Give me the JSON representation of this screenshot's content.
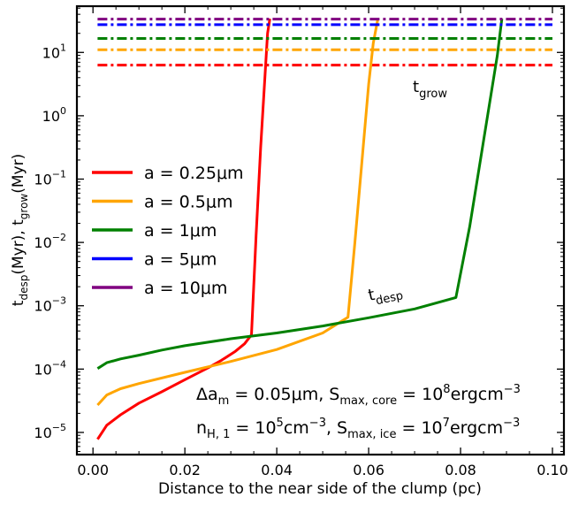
{
  "chart_data": {
    "type": "line",
    "title": "",
    "xlabel": "Distance to the near side of the clump (pc)",
    "ylabel_parts": {
      "t": "t",
      "despSub": "desp",
      "myr1": "(Myr),  ",
      "growSub": "grow",
      "myr2": "(Myr)"
    },
    "x_ticks": [
      "0.00",
      "0.02",
      "0.04",
      "0.06",
      "0.08",
      "0.10"
    ],
    "y_ticks": [
      {
        "base": "10",
        "exp": "1",
        "value": 1
      },
      {
        "base": "10",
        "exp": "0",
        "value": 0
      },
      {
        "base": "10",
        "exp": "−1",
        "value": -1
      },
      {
        "base": "10",
        "exp": "−2",
        "value": -2
      },
      {
        "base": "10",
        "exp": "−3",
        "value": -3
      },
      {
        "base": "10",
        "exp": "−4",
        "value": -4
      },
      {
        "base": "10",
        "exp": "−5",
        "value": -5
      }
    ],
    "xlim": [
      -0.0035,
      0.1025
    ],
    "ylim_log10": [
      -5.35,
      1.73
    ],
    "yscale": "log",
    "grid": false,
    "legend_placement": "center-left",
    "series": [
      {
        "name": "a = 0.25μm",
        "color": "#ff0000",
        "t_grow_myr": 6.3,
        "t_grow_x": [
          0.001,
          0.1
        ],
        "t_desp": {
          "x": [
            0.001,
            0.003,
            0.006,
            0.01,
            0.015,
            0.02,
            0.025,
            0.028,
            0.031,
            0.033,
            0.0345,
            0.0355,
            0.0365,
            0.0375,
            0.038,
            0.0385
          ],
          "y": [
            7.8e-06,
            1.3e-05,
            1.9e-05,
            2.9e-05,
            4.4e-05,
            6.8e-05,
            0.000104,
            0.000138,
            0.000191,
            0.000251,
            0.000347,
            0.0126,
            0.316,
            5.0,
            20.0,
            34.0
          ]
        }
      },
      {
        "name": "a = 0.5μm",
        "color": "#ffa500",
        "t_grow_myr": 11.0,
        "t_grow_x": [
          0.001,
          0.1
        ],
        "t_desp": {
          "x": [
            0.001,
            0.003,
            0.006,
            0.01,
            0.02,
            0.03,
            0.04,
            0.05,
            0.0555,
            0.057,
            0.0585,
            0.06,
            0.061,
            0.062
          ],
          "y": [
            2.7e-05,
            3.9e-05,
            4.9e-05,
            5.9e-05,
            8.9e-05,
            0.000132,
            0.000204,
            0.000372,
            0.000661,
            0.01,
            0.178,
            3.16,
            14.0,
            34.0
          ]
        }
      },
      {
        "name": "a = 1μm",
        "color": "#008000",
        "t_grow_myr": 16.6,
        "t_grow_x": [
          0.001,
          0.1
        ],
        "t_desp": {
          "x": [
            0.001,
            0.003,
            0.006,
            0.01,
            0.015,
            0.02,
            0.03,
            0.04,
            0.05,
            0.06,
            0.07,
            0.079,
            0.082,
            0.085,
            0.088,
            0.089
          ],
          "y": [
            0.000102,
            0.000126,
            0.000145,
            0.000166,
            0.0002,
            0.000234,
            0.000302,
            0.000372,
            0.000479,
            0.000646,
            0.000891,
            0.00135,
            0.0178,
            0.398,
            8.91,
            34.0
          ]
        }
      },
      {
        "name": "a = 5μm",
        "color": "#0000ff",
        "t_grow_myr": 27.5,
        "t_grow_x": [
          0.001,
          0.1
        ]
      },
      {
        "name": "a = 10μm",
        "color": "#800080",
        "t_grow_myr": 33.5,
        "t_grow_x": [
          0.001,
          0.1
        ]
      }
    ],
    "annotations": {
      "tgrow": {
        "main": "t",
        "sub": "grow"
      },
      "tdesp": {
        "main": "t",
        "sub": "desp"
      },
      "note1": {
        "p1": "Δa",
        "p1sub": "m",
        "p2": " = 0.05μm, S",
        "p2sub": "max, core",
        "p3": " = 10",
        "p3sup": "8",
        "p4": "ergcm",
        "p4sup": "−3"
      },
      "note2": {
        "p1": "n",
        "p1sub": "H, 1",
        "p2": " = 10",
        "p2sup": "5",
        "p3": "cm",
        "p3sup": "−3",
        "p4": ", S",
        "p4sub": "max, ice",
        "p5": " = 10",
        "p5sup": "7",
        "p6": "ergcm",
        "p6sup": "−3"
      }
    }
  }
}
